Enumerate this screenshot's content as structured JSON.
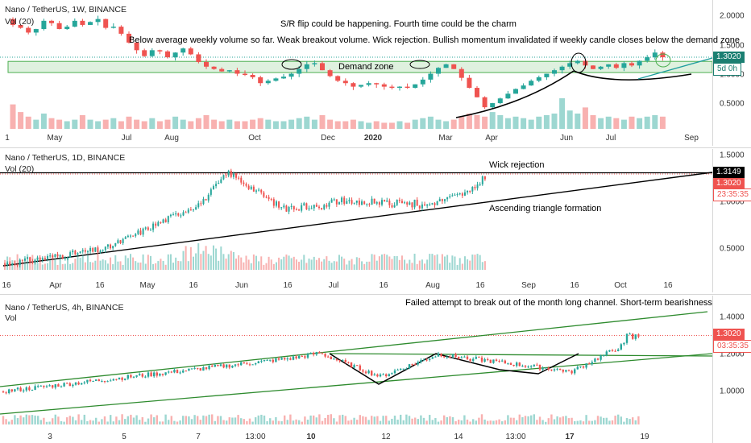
{
  "colors": {
    "up": "#26a69a",
    "down": "#ef5350",
    "zone": "#4caf50",
    "channel": "#2e8b2e",
    "trend": "#000000",
    "price_line": "#ef5350",
    "tag_bg": "#1b7f72",
    "date_badge_bg": "#1f3a5a"
  },
  "panels": [
    {
      "symbol": "Nano / TetherUS, 1W, BINANCE",
      "vol_label": "Vol (20)",
      "annotations": [
        "S/R flip could be happening.  Fourth time could be the charm",
        "Below average weekly volume so far.  Weak breakout volume.  Wick rejection.  Bullish momentum invalidated if weekly candle closes below the demand zone",
        "Demand zone"
      ],
      "y_ticks": [
        "2.0000",
        "1.5000",
        "1.0000",
        "0.5000"
      ],
      "price_tag": "1.3020",
      "countdown": "5d 0h",
      "x_ticks": [
        "1",
        "May",
        "Jul",
        "Aug",
        "Oct",
        "Dec",
        "2020",
        "Mar",
        "Apr",
        "Jun",
        "Jul",
        "Sep"
      ]
    },
    {
      "symbol": "Nano / TetherUS, 1D, BINANCE",
      "vol_label": "Vol (20)",
      "annotations": [
        "Wick rejection",
        "Ascending triangle formation"
      ],
      "y_ticks": [
        "1.5000",
        "1.0000",
        "0.5000"
      ],
      "price_tags": [
        "1.3149",
        "1.3020"
      ],
      "countdown": "23:35:35",
      "x_ticks": [
        "16",
        "Apr",
        "16",
        "May",
        "16",
        "Jun",
        "16",
        "Jul",
        "16",
        "Aug",
        "16",
        "Sep",
        "16",
        "Oct",
        "16"
      ]
    },
    {
      "symbol": "Nano / TetherUS, 4h, BINANCE",
      "vol_label": "Vol",
      "annotations": [
        "Failed attempt to break out of the month long channel.  Short-term bearishness"
      ],
      "y_ticks": [
        "1.4000",
        "1.2000",
        "1.0000"
      ],
      "price_tag": "1.3020",
      "countdown": "03:35:35",
      "x_ticks": [
        "3",
        "5",
        "7",
        "13:00",
        "10",
        "12",
        "14",
        "13:00",
        "17",
        "19"
      ]
    }
  ],
  "chart_data": [
    {
      "type": "candlestick",
      "title": "Nano / TetherUS, 1W, BINANCE",
      "timeframe": "1W",
      "ylim": [
        0.1,
        2.15
      ],
      "last_price": 1.302,
      "demand_zone": [
        1.04,
        1.23
      ],
      "x_labels": [
        "1",
        "May",
        "Jul",
        "Aug",
        "Oct",
        "Dec",
        "2020",
        "Mar",
        "Apr",
        "Jun",
        "Jul",
        "Sep"
      ],
      "candles": [
        [
          1.95,
          1.85
        ],
        [
          1.85,
          1.8
        ],
        [
          1.8,
          1.72
        ],
        [
          1.72,
          1.78
        ],
        [
          1.78,
          1.92
        ],
        [
          1.92,
          1.88
        ],
        [
          1.88,
          1.78
        ],
        [
          1.78,
          1.82
        ],
        [
          1.82,
          1.92
        ],
        [
          1.92,
          1.85
        ],
        [
          1.85,
          1.9
        ],
        [
          1.9,
          1.95
        ],
        [
          1.95,
          1.8
        ],
        [
          1.8,
          1.82
        ],
        [
          1.82,
          1.7
        ],
        [
          1.7,
          1.55
        ],
        [
          1.55,
          1.42
        ],
        [
          1.42,
          1.32
        ],
        [
          1.32,
          1.42
        ],
        [
          1.42,
          1.4
        ],
        [
          1.4,
          1.3
        ],
        [
          1.3,
          1.38
        ],
        [
          1.38,
          1.45
        ],
        [
          1.45,
          1.35
        ],
        [
          1.35,
          1.22
        ],
        [
          1.22,
          1.14
        ],
        [
          1.14,
          1.1
        ],
        [
          1.1,
          1.06
        ],
        [
          1.06,
          1.08
        ],
        [
          1.08,
          1.02
        ],
        [
          1.02,
          1.0
        ],
        [
          1.0,
          0.96
        ],
        [
          0.96,
          0.86
        ],
        [
          0.86,
          0.9
        ],
        [
          0.9,
          0.94
        ],
        [
          0.94,
          0.97
        ],
        [
          0.97,
          1.02
        ],
        [
          1.02,
          1.1
        ],
        [
          1.1,
          1.18
        ],
        [
          1.18,
          1.2
        ],
        [
          1.2,
          1.08
        ],
        [
          1.08,
          0.98
        ],
        [
          0.98,
          0.9
        ],
        [
          0.9,
          0.86
        ],
        [
          0.86,
          0.8
        ],
        [
          0.8,
          0.83
        ],
        [
          0.83,
          0.86
        ],
        [
          0.86,
          0.84
        ],
        [
          0.84,
          0.8
        ],
        [
          0.8,
          0.78
        ],
        [
          0.78,
          0.8
        ],
        [
          0.8,
          0.78
        ],
        [
          0.78,
          0.84
        ],
        [
          0.84,
          0.92
        ],
        [
          0.92,
          1.02
        ],
        [
          1.02,
          1.12
        ],
        [
          1.12,
          1.18
        ],
        [
          1.18,
          1.1
        ],
        [
          1.1,
          0.95
        ],
        [
          0.95,
          0.78
        ],
        [
          0.78,
          0.62
        ],
        [
          0.62,
          0.45
        ],
        [
          0.45,
          0.52
        ],
        [
          0.52,
          0.6
        ],
        [
          0.6,
          0.68
        ],
        [
          0.68,
          0.76
        ],
        [
          0.76,
          0.82
        ],
        [
          0.82,
          0.9
        ],
        [
          0.9,
          0.96
        ],
        [
          0.96,
          1.02
        ],
        [
          1.02,
          1.08
        ],
        [
          1.08,
          1.14
        ],
        [
          1.14,
          1.2
        ],
        [
          1.2,
          1.24
        ],
        [
          1.24,
          1.16
        ],
        [
          1.16,
          1.1
        ],
        [
          1.1,
          1.14
        ],
        [
          1.14,
          1.18
        ],
        [
          1.18,
          1.12
        ],
        [
          1.12,
          1.2
        ],
        [
          1.2,
          1.16
        ],
        [
          1.16,
          1.24
        ],
        [
          1.24,
          1.3
        ],
        [
          1.3,
          1.38
        ],
        [
          1.38,
          1.3
        ]
      ],
      "volume": [
        0.8,
        0.55,
        0.4,
        0.3,
        0.5,
        0.35,
        0.3,
        0.25,
        0.3,
        0.45,
        0.3,
        0.25,
        0.3,
        0.35,
        0.25,
        0.4,
        0.3,
        0.25,
        0.35,
        0.25,
        0.3,
        0.4,
        0.3,
        0.25,
        0.35,
        0.45,
        0.3,
        0.25,
        0.3,
        0.25,
        0.25,
        0.3,
        0.35,
        0.3,
        0.25,
        0.25,
        0.3,
        0.35,
        0.4,
        0.3,
        0.45,
        0.3,
        0.25,
        0.25,
        0.3,
        0.25,
        0.2,
        0.25,
        0.2,
        0.2,
        0.25,
        0.2,
        0.3,
        0.35,
        0.4,
        0.3,
        0.25,
        0.3,
        0.4,
        0.5,
        0.45,
        0.4,
        0.55,
        0.45,
        0.35,
        0.4,
        0.35,
        0.3,
        0.4,
        0.45,
        0.5,
        1.0,
        0.6,
        0.5,
        0.7,
        0.45,
        0.35,
        0.4,
        0.35,
        0.3,
        0.4,
        0.35,
        0.4,
        0.45,
        0.4
      ]
    },
    {
      "type": "candlestick",
      "title": "Nano / TetherUS, 1D, BINANCE",
      "timeframe": "1D",
      "ylim": [
        0.28,
        1.55
      ],
      "last_price": 1.302,
      "resistance": 1.3149,
      "x_labels": [
        "16",
        "Apr",
        "16",
        "May",
        "16",
        "Jun",
        "16",
        "Jul",
        "16",
        "Aug",
        "16",
        "Sep",
        "16",
        "Oct",
        "16"
      ]
    },
    {
      "type": "candlestick",
      "title": "Nano / TetherUS, 4h, BINANCE",
      "timeframe": "4h",
      "ylim": [
        0.86,
        1.46
      ],
      "last_price": 1.302,
      "x_labels": [
        "3",
        "5",
        "7",
        "13:00",
        "10",
        "12",
        "14",
        "13:00",
        "17",
        "19"
      ]
    }
  ]
}
